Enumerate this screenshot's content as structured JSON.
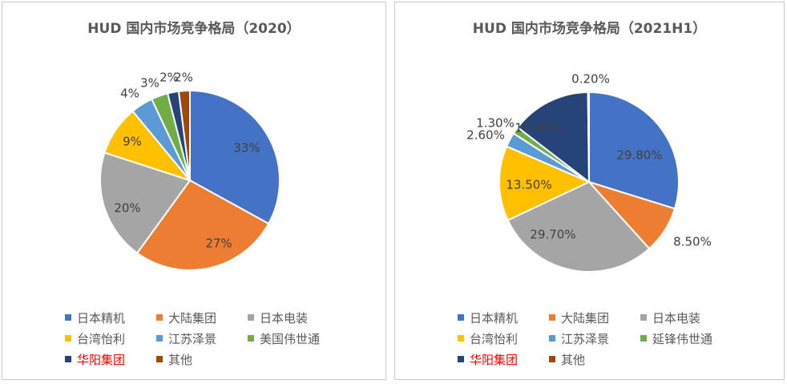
{
  "chart_data": [
    {
      "type": "pie",
      "title": "HUD 国内市场竞争格局（2020）",
      "categories": [
        "日本精机",
        "大陆集团",
        "日本电装",
        "台湾怡利",
        "江苏泽景",
        "美国伟世通",
        "华阳集团",
        "其他"
      ],
      "values": [
        33,
        27,
        20,
        9,
        4,
        3,
        2,
        2
      ],
      "labels": [
        "33%",
        "27%",
        "20%",
        "9%",
        "4%",
        "3%",
        "2%",
        "2%"
      ],
      "colors": [
        "#4472C4",
        "#ED7D31",
        "#A5A5A5",
        "#FFC000",
        "#5B9BD5",
        "#70AD47",
        "#264478",
        "#9E480E"
      ],
      "legend_position": "bottom",
      "highlighted_legend_entry": "华阳集团",
      "highlight_color": "#FF0000"
    },
    {
      "type": "pie",
      "title": "HUD 国内市场竞争格局（2021H1）",
      "categories": [
        "日本精机",
        "大陆集团",
        "日本电装",
        "台湾怡利",
        "江苏泽景",
        "延锋伟世通",
        "华阳集团",
        "其他"
      ],
      "values": [
        29.8,
        8.5,
        29.7,
        13.5,
        2.6,
        1.3,
        14.4,
        0.2
      ],
      "labels": [
        "29.80%",
        "8.50%",
        "29.70%",
        "13.50%",
        "2.60%",
        "1.30%",
        "14.40%",
        "0.20%"
      ],
      "colors": [
        "#4472C4",
        "#ED7D31",
        "#A5A5A5",
        "#FFC000",
        "#5B9BD5",
        "#70AD47",
        "#264478",
        "#9E480E"
      ],
      "legend_position": "bottom",
      "highlighted_legend_entry": "华阳集团",
      "highlight_color": "#FF0000"
    }
  ]
}
